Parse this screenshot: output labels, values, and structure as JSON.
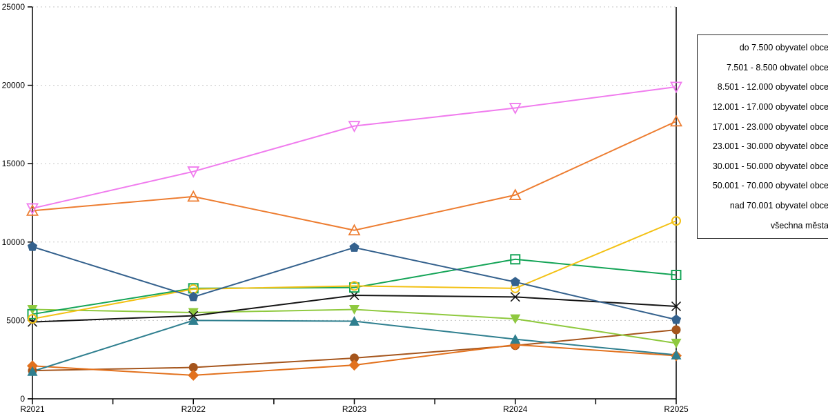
{
  "chart_data": {
    "type": "line",
    "title": "",
    "xlabel": "",
    "ylabel": "",
    "x_categories": [
      "R2021",
      "R2022",
      "R2023",
      "R2024",
      "R2025"
    ],
    "ylim": [
      0,
      25000
    ],
    "y_ticks": [
      0,
      5000,
      10000,
      15000,
      20000,
      25000
    ],
    "grid": "horizontal-dashed",
    "legend_position": "right-outside-markers-cut-off",
    "series": [
      {
        "name": "do 7.500 obyvatel obce",
        "marker": "circle-filled",
        "color": "#A5551C",
        "values": [
          1800,
          2000,
          2600,
          3400,
          4400
        ]
      },
      {
        "name": "7.501 - 8.500 obvatel obce",
        "marker": "diamond-filled",
        "color": "#E2711D",
        "values": [
          2100,
          1500,
          2150,
          3450,
          2750
        ]
      },
      {
        "name": "8.501 - 12.000 obyvatel obce",
        "marker": "triangle-up-filled",
        "color": "#2F7F8F",
        "values": [
          1750,
          5000,
          4950,
          3800,
          2800
        ]
      },
      {
        "name": "12.001 - 17.000 obyvatel obce",
        "marker": "triangle-down-filled",
        "color": "#8FC93F",
        "values": [
          5700,
          5500,
          5700,
          5100,
          3550
        ]
      },
      {
        "name": "17.001 - 23.000 obyvatel obce",
        "marker": "x-cross",
        "color": "#141414",
        "values": [
          4900,
          5300,
          6600,
          6500,
          5900
        ]
      },
      {
        "name": "23.001 - 30.000 obyvatel obce",
        "marker": "square-open",
        "color": "#14A457",
        "values": [
          5400,
          7050,
          7100,
          8900,
          7900
        ]
      },
      {
        "name": "30.001 - 50.000 obyvatel obce",
        "marker": "circle-open",
        "color": "#F3C114",
        "values": [
          5100,
          7000,
          7200,
          7050,
          11350
        ]
      },
      {
        "name": "50.001 - 70.000 obyvatel obce",
        "marker": "pentagon-filled",
        "color": "#34618D",
        "values": [
          9700,
          6500,
          9650,
          7450,
          5050
        ]
      },
      {
        "name": "nad 70.001 obyvatel obce",
        "marker": "triangle-up-open",
        "color": "#ED7D31",
        "values": [
          12000,
          12900,
          10750,
          13000,
          17700
        ]
      },
      {
        "name": "všechna města",
        "marker": "triangle-down-open",
        "color": "#F07CEE",
        "values": [
          12150,
          14500,
          17400,
          18550,
          19900
        ]
      }
    ]
  },
  "legend": {
    "items": [
      "do 7.500 obyvatel obce",
      "7.501 - 8.500 obvatel obce",
      "8.501 - 12.000 obyvatel obce",
      "12.001 - 17.000 obyvatel obce",
      "17.001 - 23.000 obyvatel obce",
      "23.001 - 30.000 obyvatel obce",
      "30.001 - 50.000 obyvatel obce",
      "50.001 - 70.000 obyvatel obce",
      "nad 70.001 obyvatel obce",
      "všechna města"
    ]
  },
  "axes": {
    "x_tick_labels": [
      "R2021",
      "R2022",
      "R2023",
      "R2024",
      "R2025"
    ],
    "y_tick_labels": [
      "0",
      "5000",
      "10000",
      "15000",
      "20000",
      "25000"
    ]
  },
  "colors": {
    "background": "#FFFFFF",
    "axis": "#000000",
    "gridline": "#C6C6C6",
    "legend_border": "#222222"
  }
}
